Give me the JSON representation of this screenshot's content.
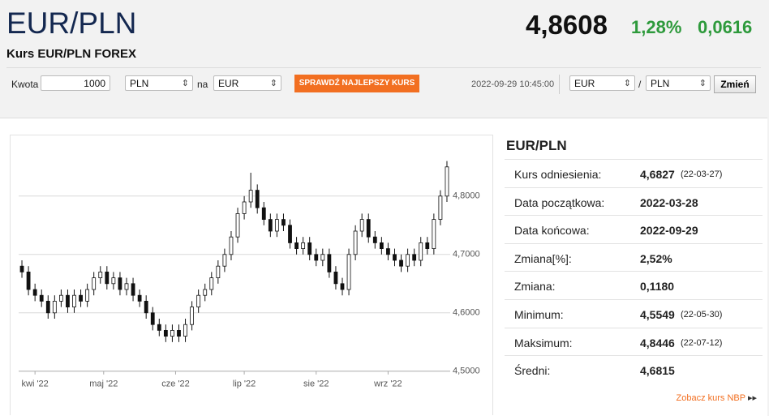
{
  "header": {
    "title": "EUR/PLN",
    "subtitle": "Kurs EUR/PLN FOREX",
    "rate": "4,8608",
    "change_pct": "1,28%",
    "change_abs": "0,0616"
  },
  "converter": {
    "amount_label": "Kwota",
    "amount": "1000",
    "from": "PLN",
    "connector": "na",
    "to": "EUR",
    "button": "SPRAWDŹ NAJLEPSZY KURS",
    "timestamp": "2022-09-29 10:45:00",
    "pair_from": "EUR",
    "separator": "/",
    "pair_to": "PLN",
    "swap_button": "Zmień"
  },
  "chart_data": {
    "type": "candlestick",
    "open": [
      4.68,
      4.67,
      4.64,
      4.63,
      4.62,
      4.6,
      4.62,
      4.63,
      4.61,
      4.63,
      4.62,
      4.64,
      4.66,
      4.67,
      4.65,
      4.66,
      4.64,
      4.65,
      4.63,
      4.62,
      4.6,
      4.58,
      4.57,
      4.56,
      4.57,
      4.56,
      4.58,
      4.61,
      4.63,
      4.64,
      4.66,
      4.68,
      4.7,
      4.73,
      4.77,
      4.79,
      4.81,
      4.78,
      4.76,
      4.74,
      4.76,
      4.75,
      4.72,
      4.71,
      4.72,
      4.7,
      4.69,
      4.7,
      4.67,
      4.65,
      4.64,
      4.7,
      4.74,
      4.76,
      4.73,
      4.72,
      4.71,
      4.7,
      4.69,
      4.68,
      4.7,
      4.69,
      4.72,
      4.71,
      4.76,
      4.8
    ],
    "high": [
      4.69,
      4.68,
      4.65,
      4.64,
      4.63,
      4.63,
      4.64,
      4.64,
      4.64,
      4.64,
      4.65,
      4.67,
      4.68,
      4.68,
      4.67,
      4.67,
      4.66,
      4.66,
      4.64,
      4.63,
      4.61,
      4.59,
      4.58,
      4.58,
      4.58,
      4.59,
      4.62,
      4.64,
      4.65,
      4.67,
      4.69,
      4.71,
      4.74,
      4.78,
      4.8,
      4.84,
      4.82,
      4.79,
      4.77,
      4.77,
      4.77,
      4.76,
      4.73,
      4.73,
      4.73,
      4.71,
      4.71,
      4.71,
      4.68,
      4.66,
      4.71,
      4.75,
      4.77,
      4.77,
      4.74,
      4.73,
      4.72,
      4.71,
      4.7,
      4.71,
      4.71,
      4.73,
      4.73,
      4.77,
      4.81,
      4.86
    ],
    "low": [
      4.66,
      4.63,
      4.62,
      4.61,
      4.59,
      4.59,
      4.61,
      4.6,
      4.6,
      4.61,
      4.61,
      4.63,
      4.65,
      4.64,
      4.64,
      4.63,
      4.63,
      4.62,
      4.61,
      4.59,
      4.57,
      4.56,
      4.55,
      4.55,
      4.55,
      4.55,
      4.57,
      4.6,
      4.62,
      4.63,
      4.65,
      4.67,
      4.69,
      4.72,
      4.76,
      4.78,
      4.77,
      4.75,
      4.73,
      4.73,
      4.74,
      4.71,
      4.7,
      4.7,
      4.69,
      4.68,
      4.68,
      4.66,
      4.64,
      4.63,
      4.63,
      4.69,
      4.73,
      4.72,
      4.71,
      4.7,
      4.69,
      4.68,
      4.67,
      4.67,
      4.68,
      4.68,
      4.7,
      4.7,
      4.75,
      4.79
    ],
    "close": [
      4.67,
      4.64,
      4.63,
      4.62,
      4.6,
      4.62,
      4.63,
      4.61,
      4.63,
      4.62,
      4.64,
      4.66,
      4.67,
      4.65,
      4.66,
      4.64,
      4.65,
      4.63,
      4.62,
      4.6,
      4.58,
      4.57,
      4.56,
      4.57,
      4.56,
      4.58,
      4.61,
      4.63,
      4.64,
      4.66,
      4.68,
      4.7,
      4.73,
      4.77,
      4.79,
      4.81,
      4.78,
      4.76,
      4.74,
      4.76,
      4.75,
      4.72,
      4.71,
      4.72,
      4.7,
      4.69,
      4.7,
      4.67,
      4.65,
      4.64,
      4.7,
      4.74,
      4.76,
      4.73,
      4.72,
      4.71,
      4.7,
      4.69,
      4.68,
      4.7,
      4.69,
      4.72,
      4.71,
      4.76,
      4.8,
      4.85
    ],
    "ylim": [
      4.49,
      4.89
    ],
    "yticks": [
      {
        "value": 4.5,
        "label": "4,5000"
      },
      {
        "value": 4.6,
        "label": "4,6000"
      },
      {
        "value": 4.7,
        "label": "4,7000"
      },
      {
        "value": 4.8,
        "label": "4,8000"
      }
    ],
    "xlim": [
      -0.5,
      65.5
    ],
    "xticks": [
      {
        "value": 2,
        "label": "kwi '22"
      },
      {
        "value": 12.5,
        "label": "maj '22"
      },
      {
        "value": 23.5,
        "label": "cze '22"
      },
      {
        "value": 34,
        "label": "lip '22"
      },
      {
        "value": 45,
        "label": "sie '22"
      },
      {
        "value": 56,
        "label": "wrz '22"
      }
    ],
    "grid": true,
    "up_color": "#ffffff",
    "down_color": "#111111"
  },
  "stats": {
    "title": "EUR/PLN",
    "rows": [
      {
        "label": "Kurs odniesienia:",
        "value": "4,6827",
        "date": "(22-03-27)"
      },
      {
        "label": "Data początkowa:",
        "value": "2022-03-28"
      },
      {
        "label": "Data końcowa:",
        "value": "2022-09-29"
      },
      {
        "label": "Zmiana[%]:",
        "value": "2,52%"
      },
      {
        "label": "Zmiana:",
        "value": "0,1180"
      },
      {
        "label": "Minimum:",
        "value": "4,5549",
        "date": "(22-05-30)"
      },
      {
        "label": "Maksimum:",
        "value": "4,8446",
        "date": "(22-07-12)"
      },
      {
        "label": "Średni:",
        "value": "4,6815"
      }
    ],
    "link": "Zobacz kurs NBP"
  }
}
